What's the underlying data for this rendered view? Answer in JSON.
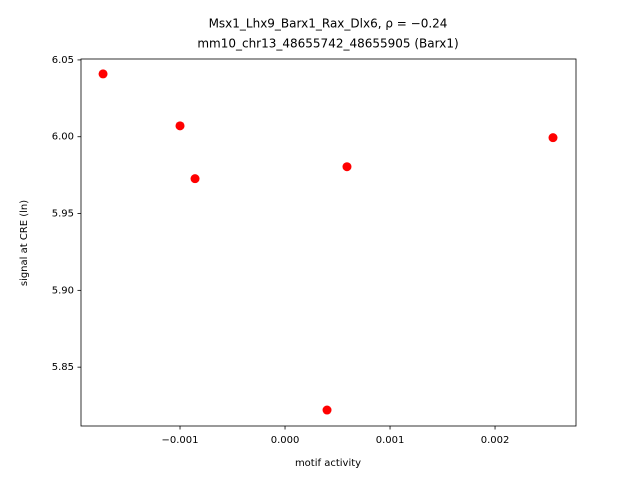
{
  "chart_data": {
    "type": "scatter",
    "title": "Msx1_Lhx9_Barx1_Rax_Dlx6, ρ = −0.24",
    "subtitle": "mm10_chr13_48655742_48655905 (Barx1)",
    "x_label": "motif activity",
    "y_label": "signal at CRE (ln)",
    "series": [
      {
        "color": "#ff0000",
        "x": [
          -0.001733,
          -0.001,
          -0.000857,
          0.00059,
          0.002552,
          0.0004
        ],
        "values": [
          6.0409,
          6.0071,
          5.9727,
          5.9805,
          5.9994,
          5.8221
        ]
      }
    ],
    "xlim": [
      -0.001943,
      0.002771
    ],
    "ylim": [
      5.8117,
      6.0506
    ],
    "xticks": [
      {
        "value": -0.001,
        "label": "−0.001"
      },
      {
        "value": 0,
        "label": "0.000"
      },
      0.001,
      0.002
    ],
    "yticks": [
      {
        "value": 5.85,
        "label": "5.85"
      },
      {
        "value": 5.9,
        "label": "5.90"
      },
      5.95,
      {
        "value": 6.0,
        "label": "6.00"
      },
      6.05
    ],
    "grid": false
  }
}
